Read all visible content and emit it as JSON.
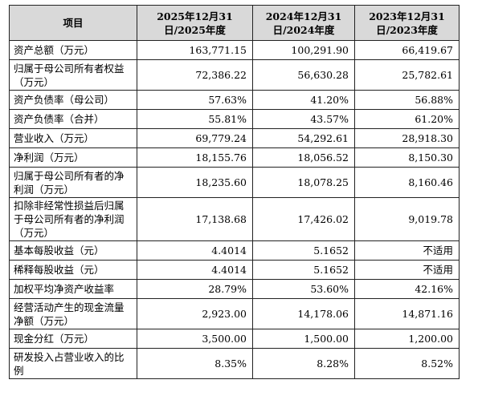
{
  "headers": [
    "项目",
    "2025年12月31日/2025年度",
    "2024年12月31日/2024年度",
    "2023年12月31日/2023年度"
  ],
  "rows": [
    {
      "label": "资产总额（万元）",
      "values": [
        "163,771.15",
        "100,291.90",
        "66,419.67"
      ]
    },
    {
      "label": "归属于母公司所有者权益（万元）",
      "values": [
        "72,386.22",
        "56,630.28",
        "25,782.61"
      ]
    },
    {
      "label": "资产负债率（母公司）",
      "values": [
        "57.63%",
        "41.20%",
        "56.88%"
      ]
    },
    {
      "label": "资产负债率（合并）",
      "values": [
        "55.81%",
        "43.57%",
        "61.20%"
      ]
    },
    {
      "label": "营业收入（万元）",
      "values": [
        "69,779.24",
        "54,292.61",
        "28,918.30"
      ]
    },
    {
      "label": "净利润（万元）",
      "values": [
        "18,155.76",
        "18,056.52",
        "8,150.30"
      ]
    },
    {
      "label": "归属于母公司所有者的净利润（万元）",
      "values": [
        "18,235.60",
        "18,078.25",
        "8,160.46"
      ]
    },
    {
      "label": "扣除非经常性损益后归属于母公司所有者的净利润（万元）",
      "values": [
        "17,138.68",
        "17,426.02",
        "9,019.78"
      ]
    },
    {
      "label": "基本每股收益（元）",
      "values": [
        "4.4014",
        "5.1652",
        "不适用"
      ]
    },
    {
      "label": "稀释每股收益（元）",
      "values": [
        "4.4014",
        "5.1652",
        "不适用"
      ]
    },
    {
      "label": "加权平均净资产收益率",
      "values": [
        "28.79%",
        "53.60%",
        "42.16%"
      ]
    },
    {
      "label": "经营活动产生的现金流量净额（万元）",
      "values": [
        "2,923.00",
        "14,178.06",
        "14,871.16"
      ]
    },
    {
      "label": "现金分红（万元）",
      "values": [
        "3,500.00",
        "1,500.00",
        "1,200.00"
      ]
    },
    {
      "label": "研发投入占营业收入的比例",
      "values": [
        "8.35%",
        "8.28%",
        "8.52%"
      ]
    }
  ],
  "colors": {
    "header_bg": "#d9d9d9",
    "border": "#222222"
  }
}
